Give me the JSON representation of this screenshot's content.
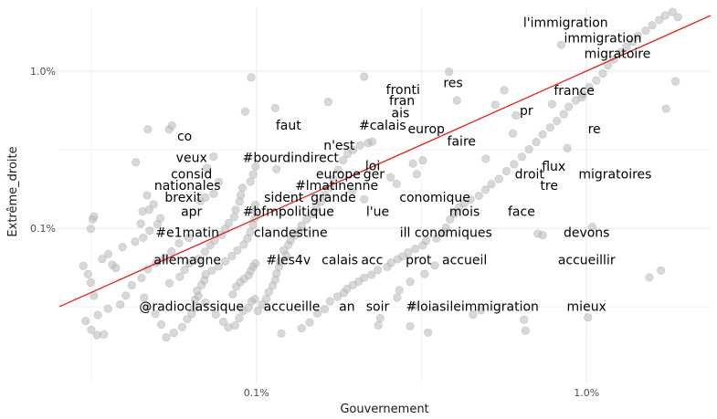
{
  "chart_data": {
    "type": "scatter",
    "xlabel": "Gouvernement",
    "ylabel": "Extrême_droite",
    "x_scale": "log",
    "y_scale": "log",
    "x_ticks": [
      {
        "value": 0.1,
        "label": "0.1%"
      },
      {
        "value": 1.0,
        "label": "1.0%"
      }
    ],
    "y_ticks": [
      {
        "value": 0.1,
        "label": "0.1%"
      },
      {
        "value": 1.0,
        "label": "1.0%"
      }
    ],
    "xlim": [
      0.0253,
      2.375
    ],
    "ylim": [
      0.0103,
      2.55
    ],
    "grid": true,
    "legend": "none",
    "colors": {
      "point": "#b8b8b8",
      "trend_line": "#e8201c",
      "grid": "#ebebeb"
    },
    "trend_line": {
      "x": [
        0.0253,
        2.375
      ],
      "y": [
        0.0317,
        2.26
      ]
    },
    "labeled_points": [
      {
        "label": "l'immigration",
        "x": 0.864,
        "y": 2.04
      },
      {
        "label": "immigration",
        "x": 1.12,
        "y": 1.63
      },
      {
        "label": "migratoire",
        "x": 1.24,
        "y": 1.3
      },
      {
        "label": "res",
        "x": 0.394,
        "y": 0.843
      },
      {
        "label": "fronti",
        "x": 0.278,
        "y": 0.763
      },
      {
        "label": "france",
        "x": 0.917,
        "y": 0.755
      },
      {
        "label": "fran",
        "x": 0.276,
        "y": 0.653
      },
      {
        "label": "pr",
        "x": 0.657,
        "y": 0.563
      },
      {
        "label": "ais",
        "x": 0.273,
        "y": 0.543
      },
      {
        "label": "faut",
        "x": 0.125,
        "y": 0.453
      },
      {
        "label": "#calais",
        "x": 0.241,
        "y": 0.453
      },
      {
        "label": "europ",
        "x": 0.327,
        "y": 0.43
      },
      {
        "label": "re",
        "x": 1.055,
        "y": 0.43
      },
      {
        "label": "co",
        "x": 0.0606,
        "y": 0.386
      },
      {
        "label": "faire",
        "x": 0.418,
        "y": 0.359
      },
      {
        "label": "n'est",
        "x": 0.178,
        "y": 0.338
      },
      {
        "label": "veux",
        "x": 0.0636,
        "y": 0.282
      },
      {
        "label": "#bourdindirect",
        "x": 0.127,
        "y": 0.282
      },
      {
        "label": "loi",
        "x": 0.225,
        "y": 0.25
      },
      {
        "label": "flux",
        "x": 0.795,
        "y": 0.248
      },
      {
        "label": "consid",
        "x": 0.0636,
        "y": 0.222
      },
      {
        "label": "europe",
        "x": 0.177,
        "y": 0.222
      },
      {
        "label": "ger",
        "x": 0.227,
        "y": 0.222
      },
      {
        "label": "droit",
        "x": 0.672,
        "y": 0.222
      },
      {
        "label": "migratoires",
        "x": 1.22,
        "y": 0.222
      },
      {
        "label": "nationales",
        "x": 0.0618,
        "y": 0.188
      },
      {
        "label": "#lmatinenne",
        "x": 0.175,
        "y": 0.188
      },
      {
        "label": "tre",
        "x": 0.77,
        "y": 0.188
      },
      {
        "label": "brexit",
        "x": 0.06,
        "y": 0.158
      },
      {
        "label": "sident",
        "x": 0.121,
        "y": 0.158
      },
      {
        "label": "grande",
        "x": 0.171,
        "y": 0.158
      },
      {
        "label": "conomique",
        "x": 0.347,
        "y": 0.158
      },
      {
        "label": "apr",
        "x": 0.0636,
        "y": 0.128
      },
      {
        "label": "#bfmpolitique",
        "x": 0.125,
        "y": 0.128
      },
      {
        "label": "l'ue",
        "x": 0.233,
        "y": 0.128
      },
      {
        "label": "mois",
        "x": 0.427,
        "y": 0.128
      },
      {
        "label": "face",
        "x": 0.635,
        "y": 0.128
      },
      {
        "label": "#e1matin",
        "x": 0.0618,
        "y": 0.094
      },
      {
        "label": "clandestine",
        "x": 0.127,
        "y": 0.094
      },
      {
        "label": "ill conomiques",
        "x": 0.375,
        "y": 0.094
      },
      {
        "label": "devons",
        "x": 1.0,
        "y": 0.094
      },
      {
        "label": "allemagne",
        "x": 0.0618,
        "y": 0.063
      },
      {
        "label": "#les4v",
        "x": 0.125,
        "y": 0.063
      },
      {
        "label": "calais",
        "x": 0.179,
        "y": 0.063
      },
      {
        "label": "acc",
        "x": 0.224,
        "y": 0.063
      },
      {
        "label": "prot",
        "x": 0.31,
        "y": 0.063
      },
      {
        "label": "accueil",
        "x": 0.427,
        "y": 0.063
      },
      {
        "label": "accueillir",
        "x": 1.0,
        "y": 0.063
      },
      {
        "label": "@radioclassique",
        "x": 0.0636,
        "y": 0.032
      },
      {
        "label": "accueille",
        "x": 0.128,
        "y": 0.032
      },
      {
        "label": "an",
        "x": 0.188,
        "y": 0.032
      },
      {
        "label": "soir",
        "x": 0.233,
        "y": 0.032
      },
      {
        "label": "#loiasileimmigration",
        "x": 0.451,
        "y": 0.032
      },
      {
        "label": "mieux",
        "x": 1.0,
        "y": 0.032
      }
    ],
    "points": [
      [
        0.0299,
        0.0576
      ],
      [
        0.0309,
        0.0511
      ],
      [
        0.0315,
        0.0452
      ],
      [
        0.0322,
        0.0372
      ],
      [
        0.0304,
        0.0257
      ],
      [
        0.0316,
        0.0226
      ],
      [
        0.0329,
        0.0209
      ],
      [
        0.0345,
        0.0211
      ],
      [
        0.0331,
        0.0281
      ],
      [
        0.0355,
        0.0308
      ],
      [
        0.0387,
        0.0327
      ],
      [
        0.0402,
        0.0373
      ],
      [
        0.0419,
        0.0434
      ],
      [
        0.0449,
        0.0483
      ],
      [
        0.0469,
        0.0549
      ],
      [
        0.0497,
        0.0604
      ],
      [
        0.0527,
        0.0648
      ],
      [
        0.0553,
        0.0712
      ],
      [
        0.0583,
        0.0803
      ],
      [
        0.0624,
        0.0869
      ],
      [
        0.0366,
        0.0586
      ],
      [
        0.0375,
        0.0559
      ],
      [
        0.0341,
        0.0638
      ],
      [
        0.0356,
        0.0685
      ],
      [
        0.0393,
        0.0759
      ],
      [
        0.0429,
        0.0822
      ],
      [
        0.0454,
        0.0871
      ],
      [
        0.0475,
        0.0966
      ],
      [
        0.0501,
        0.106
      ],
      [
        0.0512,
        0.116
      ],
      [
        0.0315,
        0.0994
      ],
      [
        0.0319,
        0.114
      ],
      [
        0.0322,
        0.119
      ],
      [
        0.0446,
        0.107
      ],
      [
        0.0452,
        0.128
      ],
      [
        0.0473,
        0.131
      ],
      [
        0.0488,
        0.142
      ],
      [
        0.0466,
        0.162
      ],
      [
        0.0431,
        0.263
      ],
      [
        0.0469,
        0.426
      ],
      [
        0.0544,
        0.426
      ],
      [
        0.0555,
        0.451
      ],
      [
        0.0457,
        0.0362
      ],
      [
        0.0466,
        0.0313
      ],
      [
        0.0494,
        0.0285
      ],
      [
        0.0515,
        0.0244
      ],
      [
        0.0533,
        0.0202
      ],
      [
        0.0562,
        0.0216
      ],
      [
        0.0596,
        0.0235
      ],
      [
        0.0617,
        0.0264
      ],
      [
        0.0637,
        0.0285
      ],
      [
        0.0647,
        0.0312
      ],
      [
        0.0651,
        0.0351
      ],
      [
        0.0667,
        0.0371
      ],
      [
        0.0661,
        0.0401
      ],
      [
        0.0682,
        0.0436
      ],
      [
        0.0696,
        0.0468
      ],
      [
        0.0702,
        0.0509
      ],
      [
        0.0733,
        0.0539
      ],
      [
        0.0768,
        0.0573
      ],
      [
        0.0805,
        0.0617
      ],
      [
        0.0843,
        0.0666
      ],
      [
        0.0876,
        0.0725
      ],
      [
        0.0915,
        0.0788
      ],
      [
        0.0939,
        0.0863
      ],
      [
        0.0957,
        0.0944
      ],
      [
        0.0976,
        0.105
      ],
      [
        0.0989,
        0.116
      ],
      [
        0.0993,
        0.129
      ],
      [
        0.0992,
        0.141
      ],
      [
        0.0545,
        0.0447
      ],
      [
        0.0586,
        0.0492
      ],
      [
        0.0606,
        0.0544
      ],
      [
        0.0626,
        0.0598
      ],
      [
        0.0667,
        0.0638
      ],
      [
        0.0698,
        0.0708
      ],
      [
        0.0724,
        0.0779
      ],
      [
        0.0747,
        0.0836
      ],
      [
        0.0786,
        0.0909
      ],
      [
        0.0803,
        0.099
      ],
      [
        0.0824,
        0.108
      ],
      [
        0.0856,
        0.118
      ],
      [
        0.0865,
        0.131
      ],
      [
        0.0889,
        0.148
      ],
      [
        0.0897,
        0.163
      ],
      [
        0.0907,
        0.181
      ],
      [
        0.0959,
        0.198
      ],
      [
        0.0977,
        0.22
      ],
      [
        0.0994,
        0.247
      ],
      [
        0.0964,
        0.914
      ],
      [
        0.0925,
        0.554
      ],
      [
        0.0769,
        0.197
      ],
      [
        0.0742,
        0.166
      ],
      [
        0.0701,
        0.157
      ],
      [
        0.0676,
        0.149
      ],
      [
        0.0709,
        0.242
      ],
      [
        0.0741,
        0.286
      ],
      [
        0.0701,
        0.0336
      ],
      [
        0.0753,
        0.0283
      ],
      [
        0.0794,
        0.0254
      ],
      [
        0.0822,
        0.0234
      ],
      [
        0.0861,
        0.0241
      ],
      [
        0.0886,
        0.0268
      ],
      [
        0.0912,
        0.0298
      ],
      [
        0.0946,
        0.0311
      ],
      [
        0.0967,
        0.0342
      ],
      [
        0.0989,
        0.0355
      ],
      [
        0.0848,
        0.038
      ],
      [
        0.0869,
        0.0425
      ],
      [
        0.0893,
        0.0455
      ],
      [
        0.0918,
        0.0477
      ],
      [
        0.0946,
        0.0502
      ],
      [
        0.0961,
        0.0536
      ],
      [
        0.0977,
        0.0571
      ],
      [
        0.0993,
        0.0598
      ],
      [
        0.101,
        0.0298
      ],
      [
        0.104,
        0.0327
      ],
      [
        0.107,
        0.0356
      ],
      [
        0.109,
        0.0393
      ],
      [
        0.112,
        0.0431
      ],
      [
        0.114,
        0.0471
      ],
      [
        0.115,
        0.0515
      ],
      [
        0.117,
        0.0569
      ],
      [
        0.118,
        0.0617
      ],
      [
        0.123,
        0.0675
      ],
      [
        0.121,
        0.0725
      ],
      [
        0.125,
        0.0784
      ],
      [
        0.127,
        0.0838
      ],
      [
        0.131,
        0.0903
      ],
      [
        0.135,
        0.0967
      ],
      [
        0.137,
        0.104
      ],
      [
        0.142,
        0.114
      ],
      [
        0.148,
        0.123
      ],
      [
        0.152,
        0.136
      ],
      [
        0.157,
        0.148
      ],
      [
        0.161,
        0.164
      ],
      [
        0.167,
        0.182
      ],
      [
        0.171,
        0.205
      ],
      [
        0.177,
        0.235
      ],
      [
        0.183,
        0.271
      ],
      [
        0.189,
        0.298
      ],
      [
        0.196,
        0.316
      ],
      [
        0.206,
        0.338
      ],
      [
        0.218,
        0.349
      ],
      [
        0.224,
        0.356
      ],
      [
        0.165,
        0.638
      ],
      [
        0.212,
        0.923
      ],
      [
        0.114,
        0.583
      ],
      [
        0.115,
        0.238
      ],
      [
        0.119,
        0.0214
      ],
      [
        0.137,
        0.0231
      ],
      [
        0.145,
        0.0252
      ],
      [
        0.153,
        0.0287
      ],
      [
        0.161,
        0.0306
      ],
      [
        0.167,
        0.0343
      ],
      [
        0.176,
        0.0367
      ],
      [
        0.184,
        0.0389
      ],
      [
        0.188,
        0.0412
      ],
      [
        0.196,
        0.0435
      ],
      [
        0.204,
        0.0459
      ],
      [
        0.212,
        0.0485
      ],
      [
        0.223,
        0.0506
      ],
      [
        0.233,
        0.0542
      ],
      [
        0.249,
        0.0568
      ],
      [
        0.256,
        0.0604
      ],
      [
        0.268,
        0.0636
      ],
      [
        0.277,
        0.0663
      ],
      [
        0.288,
        0.0703
      ],
      [
        0.303,
        0.0741
      ],
      [
        0.319,
        0.0779
      ],
      [
        0.327,
        0.0834
      ],
      [
        0.351,
        0.0861
      ],
      [
        0.367,
        0.0934
      ],
      [
        0.375,
        0.101
      ],
      [
        0.386,
        0.114
      ],
      [
        0.398,
        0.124
      ],
      [
        0.411,
        0.136
      ],
      [
        0.426,
        0.144
      ],
      [
        0.445,
        0.152
      ],
      [
        0.472,
        0.161
      ],
      [
        0.494,
        0.176
      ],
      [
        0.515,
        0.191
      ],
      [
        0.543,
        0.206
      ],
      [
        0.572,
        0.231
      ],
      [
        0.603,
        0.256
      ],
      [
        0.637,
        0.285
      ],
      [
        0.669,
        0.318
      ],
      [
        0.704,
        0.354
      ],
      [
        0.736,
        0.396
      ],
      [
        0.776,
        0.438
      ],
      [
        0.813,
        0.482
      ],
      [
        0.853,
        0.533
      ],
      [
        0.883,
        0.593
      ],
      [
        0.927,
        0.652
      ],
      [
        0.973,
        0.714
      ],
      [
        1.02,
        0.791
      ],
      [
        1.07,
        0.874
      ],
      [
        1.12,
        0.966
      ],
      [
        1.16,
        1.09
      ],
      [
        1.21,
        1.19
      ],
      [
        1.27,
        1.32
      ],
      [
        1.32,
        1.43
      ],
      [
        1.38,
        1.54
      ],
      [
        1.43,
        1.68
      ],
      [
        1.51,
        1.81
      ],
      [
        1.58,
        1.96
      ],
      [
        1.66,
        2.12
      ],
      [
        1.73,
        2.26
      ],
      [
        1.82,
        2.38
      ],
      [
        1.89,
        2.21
      ],
      [
        1.74,
        0.577
      ],
      [
        1.86,
        0.861
      ],
      [
        1.55,
        0.0487
      ],
      [
        1.68,
        0.0539
      ],
      [
        1.04,
        0.102
      ],
      [
        1.01,
        0.0271
      ],
      [
        0.653,
        0.0223
      ],
      [
        0.646,
        0.0262
      ],
      [
        0.479,
        0.0301
      ],
      [
        0.453,
        0.0282
      ],
      [
        0.331,
        0.0217
      ],
      [
        0.292,
        0.0238
      ],
      [
        0.234,
        0.0241
      ],
      [
        0.237,
        0.0268
      ],
      [
        0.301,
        0.0321
      ],
      [
        0.267,
        0.0362
      ],
      [
        0.271,
        0.0404
      ],
      [
        0.292,
        0.0457
      ],
      [
        0.323,
        0.0512
      ],
      [
        0.347,
        0.0581
      ],
      [
        0.319,
        0.271
      ],
      [
        0.306,
        0.221
      ],
      [
        0.298,
        0.258
      ],
      [
        0.383,
        0.991
      ],
      [
        0.405,
        0.652
      ],
      [
        0.529,
        0.612
      ],
      [
        0.563,
        0.757
      ],
      [
        0.598,
        0.402
      ],
      [
        0.611,
        0.523
      ],
      [
        0.786,
        0.617
      ],
      [
        0.838,
        1.47
      ],
      [
        0.967,
        0.681
      ],
      [
        0.874,
        0.324
      ],
      [
        0.711,
        0.0925
      ],
      [
        0.736,
        0.0904
      ],
      [
        0.495,
        0.277
      ],
      [
        0.212,
        0.153
      ],
      [
        0.195,
        0.174
      ],
      [
        0.255,
        0.211
      ],
      [
        0.266,
        0.192
      ]
    ]
  }
}
